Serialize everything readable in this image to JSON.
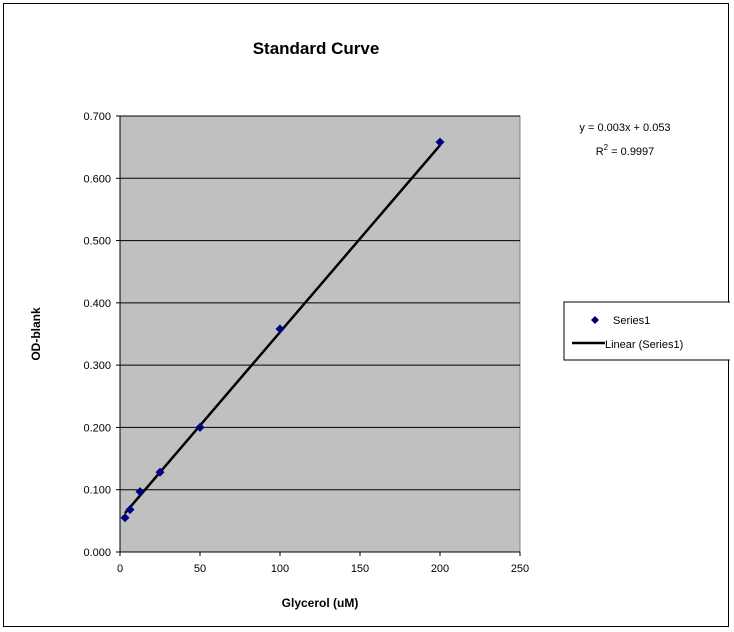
{
  "chart_data": {
    "type": "scatter",
    "title": "Standard Curve",
    "xlabel": "Glycerol (uM)",
    "ylabel": "OD-blank",
    "xlim": [
      0,
      250
    ],
    "ylim": [
      0,
      0.7
    ],
    "x_ticks": [
      "0",
      "50",
      "100",
      "150",
      "200",
      "250"
    ],
    "x_tick_values": [
      0,
      50,
      100,
      150,
      200,
      250
    ],
    "y_ticks": [
      "0.000",
      "0.100",
      "0.200",
      "0.300",
      "0.400",
      "0.500",
      "0.600",
      "0.700"
    ],
    "y_tick_values": [
      0,
      0.1,
      0.2,
      0.3,
      0.4,
      0.5,
      0.6,
      0.7
    ],
    "grid": "horizontal",
    "plot_background": "#c0c0c0",
    "series": [
      {
        "name": "Series1",
        "marker": "diamond",
        "color": "#000080",
        "x": [
          3.125,
          6.25,
          12.5,
          25,
          50,
          100,
          200
        ],
        "y": [
          0.055,
          0.068,
          0.097,
          0.128,
          0.2,
          0.358,
          0.658
        ]
      }
    ],
    "trendline": {
      "name": "Linear (Series1)",
      "type": "linear",
      "slope": 0.003,
      "intercept": 0.053,
      "x_range": [
        3.125,
        200
      ],
      "color": "#000000",
      "equation": "y = 0.003x + 0.053",
      "r2_label": "R",
      "r2_sup": "2",
      "r2_value": " = 0.9997"
    },
    "legend": {
      "placement": "right",
      "entries": [
        "Series1",
        "Linear (Series1)"
      ]
    }
  }
}
